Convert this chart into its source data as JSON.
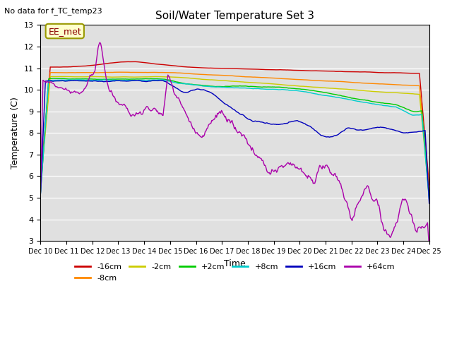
{
  "title": "Soil/Water Temperature Set 3",
  "subtitle": "No data for f_TC_temp23",
  "xlabel": "Time",
  "ylabel": "Temperature (C)",
  "annotation": "EE_met",
  "ylim": [
    3.0,
    13.0
  ],
  "yticks": [
    3.0,
    4.0,
    5.0,
    6.0,
    7.0,
    8.0,
    9.0,
    10.0,
    11.0,
    12.0,
    13.0
  ],
  "xtick_labels": [
    "Dec 10",
    "Dec 11",
    "Dec 12",
    "Dec 13",
    "Dec 14",
    "Dec 15",
    "Dec 16",
    "Dec 17",
    "Dec 18",
    "Dec 19",
    "Dec 20",
    "Dec 21",
    "Dec 22",
    "Dec 23",
    "Dec 24",
    "Dec 25"
  ],
  "bg_color": "#e0e0e0",
  "fig_color": "#ffffff",
  "series_order": [
    "-16cm",
    "-8cm",
    "-2cm",
    "+2cm",
    "+8cm",
    "+16cm",
    "+64cm"
  ],
  "series": {
    "-16cm": {
      "color": "#cc0000",
      "lw": 1.0
    },
    "-8cm": {
      "color": "#ff8800",
      "lw": 1.0
    },
    "-2cm": {
      "color": "#cccc00",
      "lw": 1.0
    },
    "+2cm": {
      "color": "#00cc00",
      "lw": 1.0
    },
    "+8cm": {
      "color": "#00cccc",
      "lw": 1.0
    },
    "+16cm": {
      "color": "#0000bb",
      "lw": 1.0
    },
    "+64cm": {
      "color": "#aa00aa",
      "lw": 1.0
    }
  }
}
